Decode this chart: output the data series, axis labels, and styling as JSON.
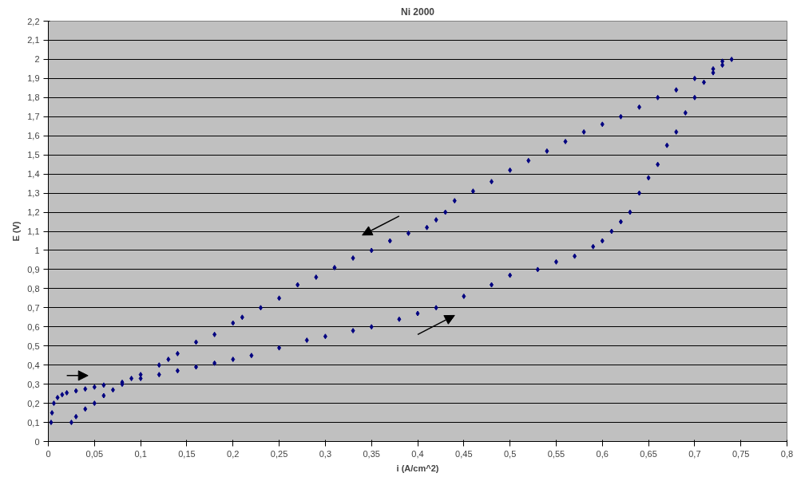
{
  "chart_data": {
    "type": "scatter",
    "title": "Ni 2000",
    "xlabel": "i (A/cm^2)",
    "ylabel": "E (V)",
    "series": [
      {
        "color": "#000080",
        "x": [
          0.003,
          0.004,
          0.006,
          0.01,
          0.015,
          0.02,
          0.03,
          0.04,
          0.05,
          0.06,
          0.08,
          0.1,
          0.12,
          0.14,
          0.16,
          0.18,
          0.2,
          0.22,
          0.25,
          0.28,
          0.3,
          0.33,
          0.35,
          0.38,
          0.4,
          0.42,
          0.45,
          0.48,
          0.5,
          0.53,
          0.55,
          0.57,
          0.59,
          0.6,
          0.61,
          0.62,
          0.63,
          0.64,
          0.65,
          0.66,
          0.67,
          0.68,
          0.69,
          0.7,
          0.71,
          0.72,
          0.73,
          0.74
        ],
        "values": [
          0.1,
          0.15,
          0.2,
          0.23,
          0.245,
          0.255,
          0.265,
          0.275,
          0.285,
          0.295,
          0.31,
          0.33,
          0.35,
          0.37,
          0.39,
          0.41,
          0.43,
          0.45,
          0.49,
          0.53,
          0.55,
          0.58,
          0.6,
          0.64,
          0.67,
          0.7,
          0.76,
          0.82,
          0.87,
          0.9,
          0.94,
          0.97,
          1.02,
          1.05,
          1.1,
          1.15,
          1.2,
          1.3,
          1.38,
          1.45,
          1.55,
          1.62,
          1.72,
          1.8,
          1.88,
          1.93,
          1.97,
          2.0
        ]
      },
      {
        "color": "#000080",
        "x": [
          0.73,
          0.72,
          0.7,
          0.68,
          0.66,
          0.64,
          0.62,
          0.6,
          0.58,
          0.56,
          0.54,
          0.52,
          0.5,
          0.48,
          0.46,
          0.44,
          0.43,
          0.42,
          0.41,
          0.39,
          0.37,
          0.35,
          0.33,
          0.31,
          0.29,
          0.27,
          0.25,
          0.23,
          0.21,
          0.2,
          0.18,
          0.16,
          0.14,
          0.13,
          0.12,
          0.1,
          0.09,
          0.08,
          0.07,
          0.06,
          0.05,
          0.04,
          0.03,
          0.025
        ],
        "values": [
          1.99,
          1.95,
          1.9,
          1.84,
          1.8,
          1.75,
          1.7,
          1.66,
          1.62,
          1.57,
          1.52,
          1.47,
          1.42,
          1.36,
          1.31,
          1.26,
          1.2,
          1.16,
          1.12,
          1.09,
          1.05,
          1.0,
          0.96,
          0.91,
          0.86,
          0.82,
          0.75,
          0.7,
          0.65,
          0.62,
          0.56,
          0.52,
          0.46,
          0.43,
          0.4,
          0.35,
          0.33,
          0.3,
          0.27,
          0.24,
          0.2,
          0.17,
          0.13,
          0.1
        ]
      }
    ],
    "xlim": [
      0,
      0.8
    ],
    "xticks": [
      0,
      {
        "value": 0.05,
        "label": "0,05"
      },
      {
        "value": 0.1,
        "label": "0,1"
      },
      {
        "value": 0.15,
        "label": "0,15"
      },
      {
        "value": 0.2,
        "label": "0,2"
      },
      {
        "value": 0.25,
        "label": "0,25"
      },
      {
        "value": 0.3,
        "label": "0,3"
      },
      {
        "value": 0.35,
        "label": "0,35"
      },
      {
        "value": 0.4,
        "label": "0,4"
      },
      {
        "value": 0.45,
        "label": "0,45"
      },
      {
        "value": 0.5,
        "label": "0,5"
      },
      {
        "value": 0.55,
        "label": "0,55"
      },
      {
        "value": 0.6,
        "label": "0,6"
      },
      {
        "value": 0.65,
        "label": "0,65"
      },
      {
        "value": 0.7,
        "label": "0,7"
      },
      {
        "value": 0.75,
        "label": "0,75"
      },
      {
        "value": 0.8,
        "label": "0,8"
      }
    ],
    "ylim": [
      0,
      2.2
    ],
    "yticks": [
      0,
      {
        "value": 0.1,
        "label": "0,1"
      },
      {
        "value": 0.2,
        "label": "0,2"
      },
      {
        "value": 0.3,
        "label": "0,3"
      },
      {
        "value": 0.4,
        "label": "0,4"
      },
      {
        "value": 0.5,
        "label": "0,5"
      },
      {
        "value": 0.6,
        "label": "0,6"
      },
      {
        "value": 0.7,
        "label": "0,7"
      },
      {
        "value": 0.8,
        "label": "0,8"
      },
      {
        "value": 0.9,
        "label": "0,9"
      },
      1,
      {
        "value": 1.1,
        "label": "1,1"
      },
      {
        "value": 1.2,
        "label": "1,2"
      },
      {
        "value": 1.3,
        "label": "1,3"
      },
      {
        "value": 1.4,
        "label": "1,4"
      },
      {
        "value": 1.5,
        "label": "1,5"
      },
      {
        "value": 1.6,
        "label": "1,6"
      },
      {
        "value": 1.7,
        "label": "1,7"
      },
      {
        "value": 1.8,
        "label": "1,8"
      },
      {
        "value": 1.9,
        "label": "1,9"
      },
      2,
      {
        "value": 2.1,
        "label": "2,1"
      },
      {
        "value": 2.2,
        "label": "2,2"
      }
    ],
    "grid": "y",
    "marker": "diamond"
  }
}
